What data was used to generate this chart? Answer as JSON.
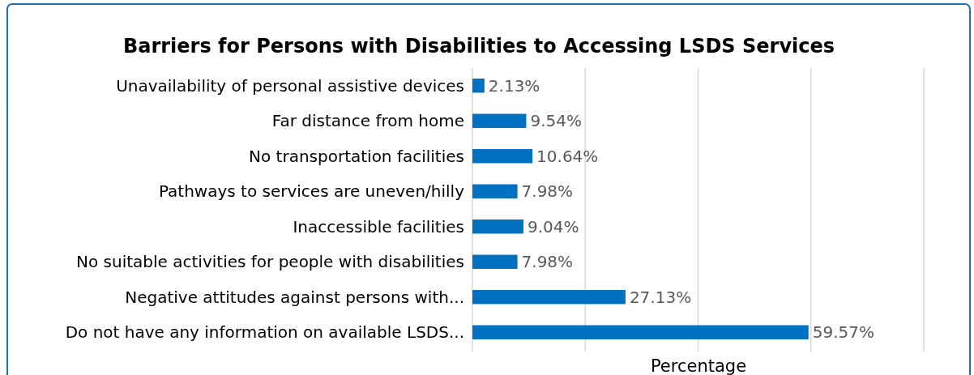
{
  "chart_data": {
    "type": "bar",
    "orientation": "horizontal",
    "title": "Barriers for Persons with Disabilities to Accessing LSDS Services",
    "xlabel": "Percentage",
    "categories": [
      "Unavailability of personal assistive devices",
      "Far distance from home",
      "No transportation facilities",
      "Pathways to services are uneven/hilly",
      "Inaccessible facilities",
      "No suitable activities for people with disabilities",
      "Negative attitudes against persons with...",
      "Do not have any information on available LSDS..."
    ],
    "values": [
      2.13,
      9.54,
      10.64,
      7.98,
      9.04,
      7.98,
      27.13,
      59.57
    ],
    "value_labels": [
      "2.13%",
      "9.54%",
      "10.64%",
      "7.98%",
      "9.04%",
      "7.98%",
      "27.13%",
      "59.57%"
    ],
    "color": "#0070c0",
    "xlim": [
      0,
      80
    ],
    "xticks": [
      {
        "value": 0,
        "label": null
      },
      {
        "value": 20,
        "label": null
      },
      {
        "value": 40,
        "label": null
      },
      {
        "value": 60,
        "label": null
      },
      {
        "value": 80,
        "label": null
      }
    ],
    "grid": "x",
    "tick_labels": "y"
  }
}
